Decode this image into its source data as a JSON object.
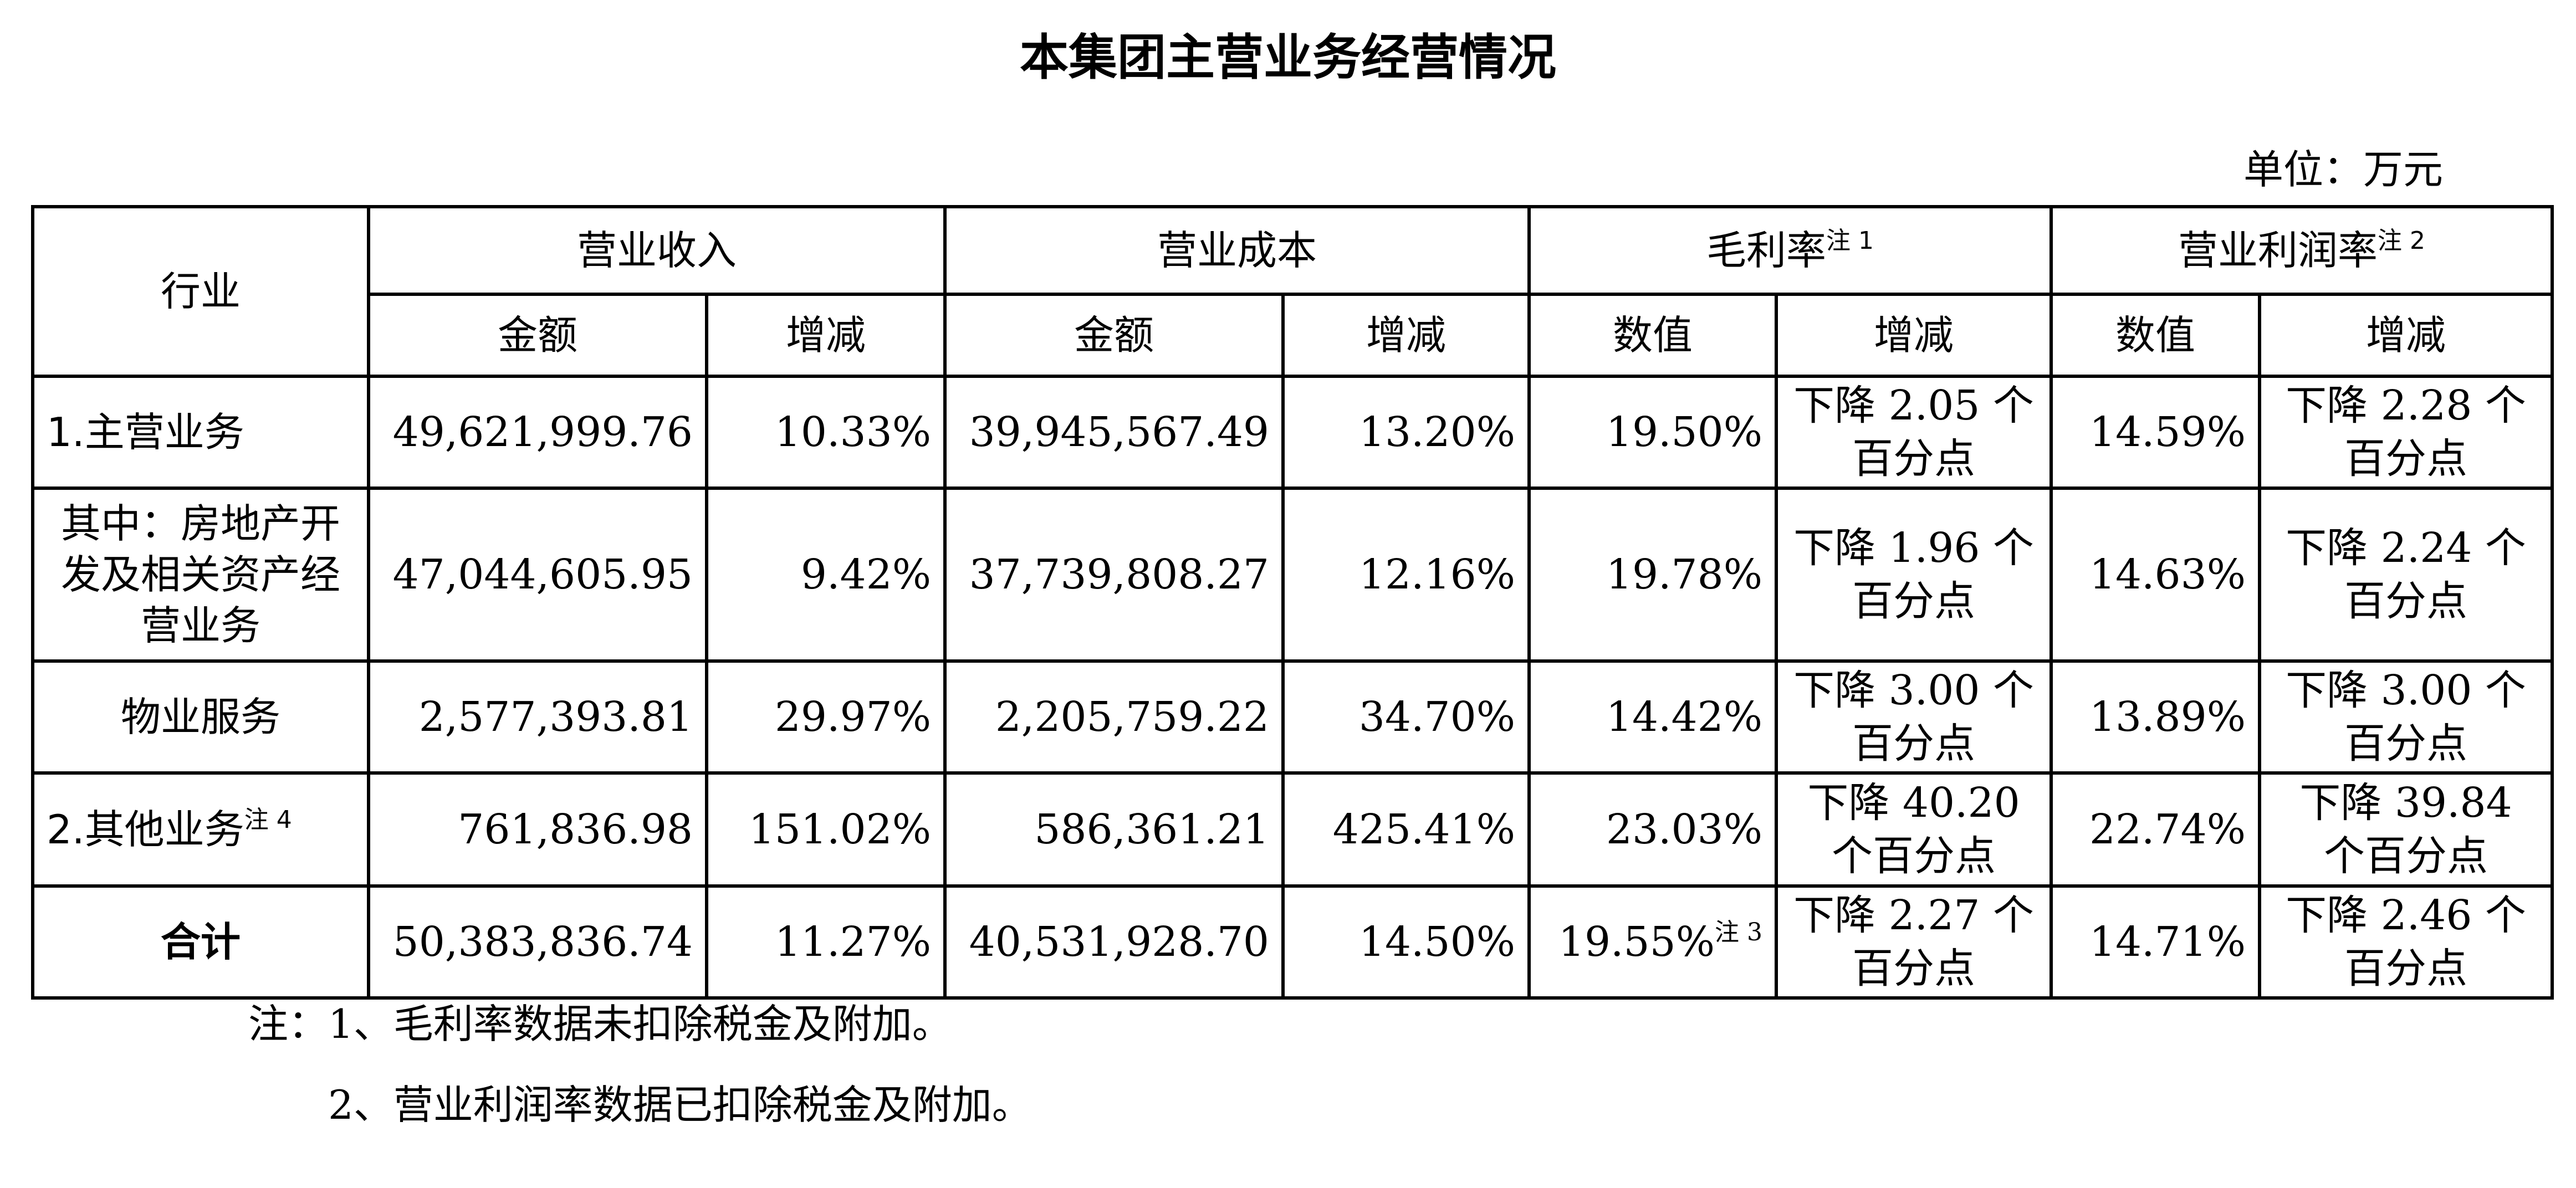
{
  "title": "本集团主营业务经营情况",
  "unit": "单位：万元",
  "headers": {
    "industry": "行业",
    "revenue": "营业收入",
    "cost": "营业成本",
    "gross_margin": "毛利率",
    "gross_margin_note": "注 1",
    "op_margin": "营业利润率",
    "op_margin_note": "注 2",
    "amount": "金额",
    "change": "增减",
    "value": "数值"
  },
  "rows": [
    {
      "industry": "1.主营业务",
      "industry_note": "",
      "revenue_amount": "49,621,999.76",
      "revenue_change": "10.33%",
      "cost_amount": "39,945,567.49",
      "cost_change": "13.20%",
      "gm_value": "19.50%",
      "gm_value_note": "",
      "gm_change": "下降 2.05 个百分点",
      "om_value": "14.59%",
      "om_change": "下降 2.28 个百分点"
    },
    {
      "industry": "其中：房地产开发及相关资产经营业务",
      "industry_note": "",
      "revenue_amount": "47,044,605.95",
      "revenue_change": "9.42%",
      "cost_amount": "37,739,808.27",
      "cost_change": "12.16%",
      "gm_value": "19.78%",
      "gm_value_note": "",
      "gm_change": "下降 1.96 个百分点",
      "om_value": "14.63%",
      "om_change": "下降 2.24 个百分点"
    },
    {
      "industry": "物业服务",
      "industry_note": "",
      "revenue_amount": "2,577,393.81",
      "revenue_change": "29.97%",
      "cost_amount": "2,205,759.22",
      "cost_change": "34.70%",
      "gm_value": "14.42%",
      "gm_value_note": "",
      "gm_change": "下降 3.00 个百分点",
      "om_value": "13.89%",
      "om_change": "下降 3.00 个百分点"
    },
    {
      "industry": "2.其他业务",
      "industry_note": "注 4",
      "revenue_amount": "761,836.98",
      "revenue_change": "151.02%",
      "cost_amount": "586,361.21",
      "cost_change": "425.41%",
      "gm_value": "23.03%",
      "gm_value_note": "",
      "gm_change": "下降 40.20 个百分点",
      "om_value": "22.74%",
      "om_change": "下降 39.84 个百分点"
    },
    {
      "industry": "合计",
      "industry_note": "",
      "revenue_amount": "50,383,836.74",
      "revenue_change": "11.27%",
      "cost_amount": "40,531,928.70",
      "cost_change": "14.50%",
      "gm_value": "19.55%",
      "gm_value_note": "注 3",
      "gm_change": "下降 2.27 个百分点",
      "om_value": "14.71%",
      "om_change": "下降 2.46 个百分点"
    }
  ],
  "notes": [
    "注：1、毛利率数据未扣除税金及附加。",
    "2、营业利润率数据已扣除税金及附加。"
  ]
}
